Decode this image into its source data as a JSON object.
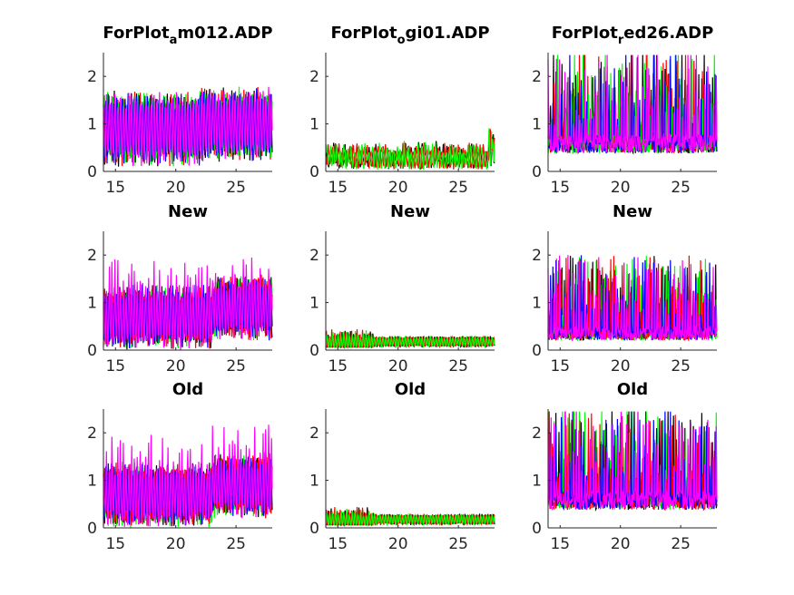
{
  "chart_data": [
    {
      "type": "line",
      "title": "ForPlot_am012.ADP",
      "title_main": "ForPlot",
      "title_sub": "a",
      "title_rest": "m012.ADP",
      "xlim": [
        14,
        28
      ],
      "ylim": [
        0,
        2.5
      ],
      "xticks": [
        15,
        20,
        25
      ],
      "yticks": [
        0,
        1,
        2
      ],
      "series_colors": [
        "#000000",
        "#ff0000",
        "#00ff00",
        "#0000ff",
        "#ff00ff"
      ],
      "profile": "high",
      "seed": 1
    },
    {
      "type": "line",
      "title": "ForPlot_ogi01.ADP",
      "title_main": "ForPlot",
      "title_sub": "o",
      "title_rest": "gi01.ADP",
      "xlim": [
        14,
        28
      ],
      "ylim": [
        0,
        2.5
      ],
      "xticks": [
        15,
        20,
        25
      ],
      "yticks": [
        0,
        1,
        2
      ],
      "series_colors": [
        "#000000",
        "#ff0000",
        "#00ff00"
      ],
      "profile": "low",
      "seed": 2
    },
    {
      "type": "line",
      "title": "ForPlot_red26.ADP",
      "title_main": "ForPlot",
      "title_sub": "r",
      "title_rest": "ed26.ADP",
      "xlim": [
        14,
        28
      ],
      "ylim": [
        0,
        2.5
      ],
      "xticks": [
        15,
        20,
        25
      ],
      "yticks": [
        0,
        1,
        2
      ],
      "series_colors": [
        "#000000",
        "#ff0000",
        "#00ff00",
        "#0000ff",
        "#ff00ff"
      ],
      "profile": "spiky",
      "seed": 3
    },
    {
      "type": "line",
      "title": "New",
      "xlim": [
        14,
        28
      ],
      "ylim": [
        0,
        2.5
      ],
      "xticks": [
        15,
        20,
        25
      ],
      "yticks": [
        0,
        1,
        2
      ],
      "series_colors": [
        "#000000",
        "#00ff00",
        "#ff0000",
        "#0000ff",
        "#ff00ff"
      ],
      "profile": "mid",
      "seed": 4
    },
    {
      "type": "line",
      "title": "New",
      "xlim": [
        14,
        28
      ],
      "ylim": [
        0,
        2.5
      ],
      "xticks": [
        15,
        20,
        25
      ],
      "yticks": [
        0,
        1,
        2
      ],
      "series_colors": [
        "#000000",
        "#ff0000",
        "#00ff00"
      ],
      "profile": "smooth",
      "seed": 5
    },
    {
      "type": "line",
      "title": "New",
      "xlim": [
        14,
        28
      ],
      "ylim": [
        0,
        2.5
      ],
      "xticks": [
        15,
        20,
        25
      ],
      "yticks": [
        0,
        1,
        2
      ],
      "series_colors": [
        "#000000",
        "#00ff00",
        "#ff0000",
        "#0000ff",
        "#ff00ff"
      ],
      "profile": "spikylow",
      "seed": 6
    },
    {
      "type": "line",
      "title": "Old",
      "xlim": [
        14,
        28
      ],
      "ylim": [
        0,
        2.5
      ],
      "xticks": [
        15,
        20,
        25
      ],
      "yticks": [
        0,
        1,
        2
      ],
      "series_colors": [
        "#000000",
        "#00ff00",
        "#ff0000",
        "#0000ff",
        "#ff00ff"
      ],
      "profile": "mid",
      "seed": 7
    },
    {
      "type": "line",
      "title": "Old",
      "xlim": [
        14,
        28
      ],
      "ylim": [
        0,
        2.5
      ],
      "xticks": [
        15,
        20,
        25
      ],
      "yticks": [
        0,
        1,
        2
      ],
      "series_colors": [
        "#000000",
        "#ff0000",
        "#00ff00"
      ],
      "profile": "smooth",
      "seed": 8
    },
    {
      "type": "line",
      "title": "Old",
      "xlim": [
        14,
        28
      ],
      "ylim": [
        0,
        2.5
      ],
      "xticks": [
        15,
        20,
        25
      ],
      "yticks": [
        0,
        1,
        2
      ],
      "series_colors": [
        "#000000",
        "#00ff00",
        "#ff0000",
        "#0000ff",
        "#ff00ff"
      ],
      "profile": "spiky",
      "seed": 9
    }
  ]
}
